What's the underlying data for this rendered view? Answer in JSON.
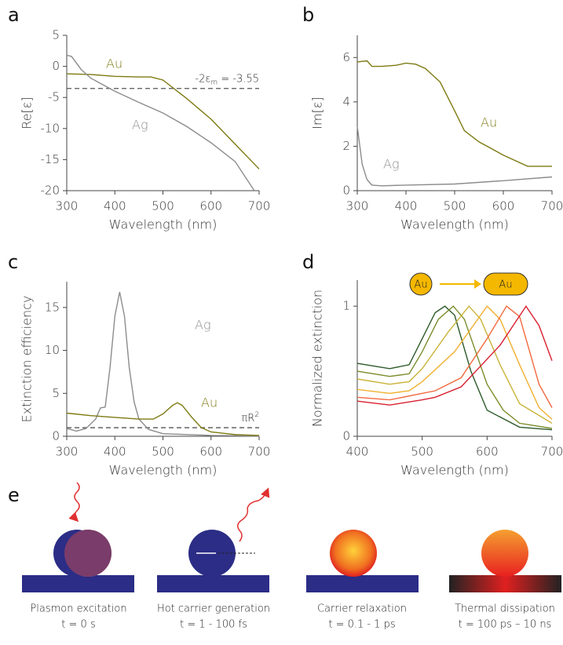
{
  "chart_data": [
    {
      "type": "line",
      "panel": "a",
      "xlabel": "Wavelength (nm)",
      "ylabel": "Re[ε]",
      "xlim": [
        300,
        700
      ],
      "ylim": [
        -20,
        5
      ],
      "xticks": [
        300,
        400,
        500,
        600,
        700
      ],
      "yticks": [
        5,
        0,
        -5,
        -10,
        -15,
        -20
      ],
      "series": [
        {
          "name": "Au",
          "color": "#7d7a12",
          "x": [
            300,
            350,
            400,
            450,
            475,
            500,
            550,
            600,
            650,
            700
          ],
          "values": [
            -1.2,
            -1.3,
            -1.6,
            -1.7,
            -1.7,
            -2.2,
            -5.2,
            -8.5,
            -12.5,
            -16.5
          ]
        },
        {
          "name": "Ag",
          "color": "#8c8c8c",
          "x": [
            300,
            310,
            330,
            350,
            400,
            450,
            500,
            550,
            600,
            650,
            690
          ],
          "values": [
            1.8,
            1.6,
            -0.5,
            -1.9,
            -4.0,
            -5.8,
            -7.5,
            -9.7,
            -12.3,
            -15.3,
            -20
          ]
        }
      ],
      "hline": {
        "value": -3.55,
        "label": [
          "-2ε",
          "m",
          " = -3.55"
        ]
      }
    },
    {
      "type": "line",
      "panel": "b",
      "xlabel": "Wavelength (nm)",
      "ylabel": "Im[ε]",
      "xlim": [
        300,
        700
      ],
      "ylim": [
        0,
        7
      ],
      "xticks": [
        300,
        400,
        500,
        600,
        700
      ],
      "yticks": [
        0,
        2,
        4,
        6
      ],
      "series": [
        {
          "name": "Au",
          "color": "#7d7a12",
          "x": [
            300,
            320,
            330,
            350,
            380,
            400,
            420,
            440,
            470,
            500,
            520,
            550,
            600,
            650,
            700
          ],
          "values": [
            5.8,
            5.85,
            5.6,
            5.6,
            5.65,
            5.75,
            5.7,
            5.5,
            4.9,
            3.6,
            2.7,
            2.2,
            1.6,
            1.1,
            1.1
          ]
        },
        {
          "name": "Ag",
          "color": "#8c8c8c",
          "x": [
            300,
            310,
            320,
            330,
            350,
            400,
            500,
            600,
            700
          ],
          "values": [
            2.9,
            1.2,
            0.5,
            0.25,
            0.22,
            0.25,
            0.3,
            0.45,
            0.62
          ]
        }
      ]
    },
    {
      "type": "line",
      "panel": "c",
      "xlabel": "Wavelength (nm)",
      "ylabel": "Extinction efficiency",
      "xlim": [
        300,
        700
      ],
      "ylim": [
        0,
        18
      ],
      "xticks": [
        300,
        400,
        500,
        600,
        700
      ],
      "yticks": [
        0,
        5,
        10,
        15
      ],
      "series": [
        {
          "name": "Ag",
          "color": "#8c8c8c",
          "x": [
            300,
            320,
            340,
            360,
            370,
            380,
            390,
            400,
            410,
            420,
            430,
            440,
            450,
            470,
            500,
            600,
            700
          ],
          "values": [
            0.9,
            0.6,
            0.9,
            2,
            3.3,
            3.4,
            8,
            14,
            16.8,
            14,
            8,
            4,
            2,
            0.8,
            0.3,
            0.1,
            0.05
          ]
        },
        {
          "name": "Au",
          "color": "#7d7a12",
          "x": [
            300,
            350,
            400,
            450,
            480,
            500,
            520,
            530,
            540,
            560,
            580,
            600,
            650,
            700
          ],
          "values": [
            2.7,
            2.4,
            2.2,
            2.0,
            2.0,
            2.6,
            3.6,
            3.9,
            3.6,
            2.2,
            1.0,
            0.5,
            0.2,
            0.1
          ]
        }
      ],
      "hline": {
        "value": 1,
        "label": [
          "πR",
          "2",
          ""
        ]
      }
    },
    {
      "type": "line",
      "panel": "d",
      "xlabel": "Wavelength (nm)",
      "ylabel": "Normalized extinction",
      "xlim": [
        400,
        700
      ],
      "ylim": [
        0,
        1.2
      ],
      "xticks": [
        400,
        500,
        600,
        700
      ],
      "yticks": [
        0,
        1
      ],
      "shape_labels": [
        "Au",
        "Au"
      ],
      "series": [
        {
          "color": "#2d5a2a",
          "x": [
            400,
            450,
            480,
            500,
            520,
            535,
            550,
            575,
            600,
            650,
            700
          ],
          "values": [
            0.56,
            0.52,
            0.55,
            0.75,
            0.95,
            1.0,
            0.93,
            0.5,
            0.2,
            0.07,
            0.05
          ]
        },
        {
          "color": "#7a8c2a",
          "x": [
            400,
            450,
            480,
            500,
            525,
            548,
            565,
            600,
            625,
            650,
            700
          ],
          "values": [
            0.5,
            0.46,
            0.48,
            0.65,
            0.9,
            1.0,
            0.9,
            0.4,
            0.2,
            0.1,
            0.06
          ]
        },
        {
          "color": "#c9b43a",
          "x": [
            400,
            450,
            480,
            500,
            540,
            572,
            590,
            620,
            650,
            700
          ],
          "values": [
            0.44,
            0.4,
            0.42,
            0.52,
            0.8,
            1.0,
            0.9,
            0.55,
            0.25,
            0.1
          ]
        },
        {
          "color": "#f0b030",
          "x": [
            400,
            450,
            480,
            500,
            550,
            600,
            620,
            650,
            680,
            700
          ],
          "values": [
            0.36,
            0.33,
            0.35,
            0.42,
            0.65,
            1.0,
            0.9,
            0.55,
            0.22,
            0.13
          ]
        },
        {
          "color": "#f06a40",
          "x": [
            400,
            450,
            500,
            520,
            560,
            600,
            630,
            650,
            680,
            700
          ],
          "values": [
            0.3,
            0.28,
            0.33,
            0.35,
            0.45,
            0.75,
            1.0,
            0.92,
            0.4,
            0.22
          ]
        },
        {
          "color": "#d82030",
          "x": [
            400,
            450,
            500,
            520,
            560,
            620,
            660,
            680,
            700
          ],
          "values": [
            0.27,
            0.24,
            0.28,
            0.3,
            0.38,
            0.7,
            1.0,
            0.85,
            0.58
          ]
        }
      ]
    }
  ],
  "panel_e": {
    "letter": "e",
    "stages": [
      {
        "label": "Plasmon excitation",
        "time": "t = 0 s"
      },
      {
        "label": "Hot carrier generation",
        "time": "t = 1 - 100 fs"
      },
      {
        "label": "Carrier relaxation",
        "time": "t = 0.1 - 1 ps"
      },
      {
        "label": "Thermal dissipation",
        "time": "t = 100 ps – 10 ns"
      }
    ]
  }
}
